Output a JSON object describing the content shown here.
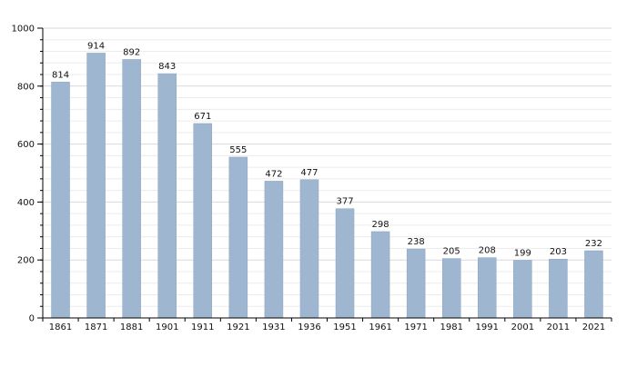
{
  "chart_data": {
    "type": "bar",
    "title": "",
    "xlabel": "",
    "ylabel": "",
    "categories": [
      "1861",
      "1871",
      "1881",
      "1901",
      "1911",
      "1921",
      "1931",
      "1936",
      "1951",
      "1961",
      "1971",
      "1981",
      "1991",
      "2001",
      "2011",
      "2021"
    ],
    "values": [
      814,
      914,
      892,
      843,
      671,
      555,
      472,
      477,
      377,
      298,
      238,
      205,
      208,
      199,
      203,
      232
    ],
    "ylim": [
      0,
      1000
    ],
    "yticks": [
      0,
      200,
      400,
      600,
      800,
      1000
    ],
    "minor_grid_step": 40,
    "grid": true,
    "legend": "none",
    "bar_color": "#9fb6d1",
    "bar_edge_color": "#8aa3c0",
    "grid_color": "#d9d9d9"
  }
}
